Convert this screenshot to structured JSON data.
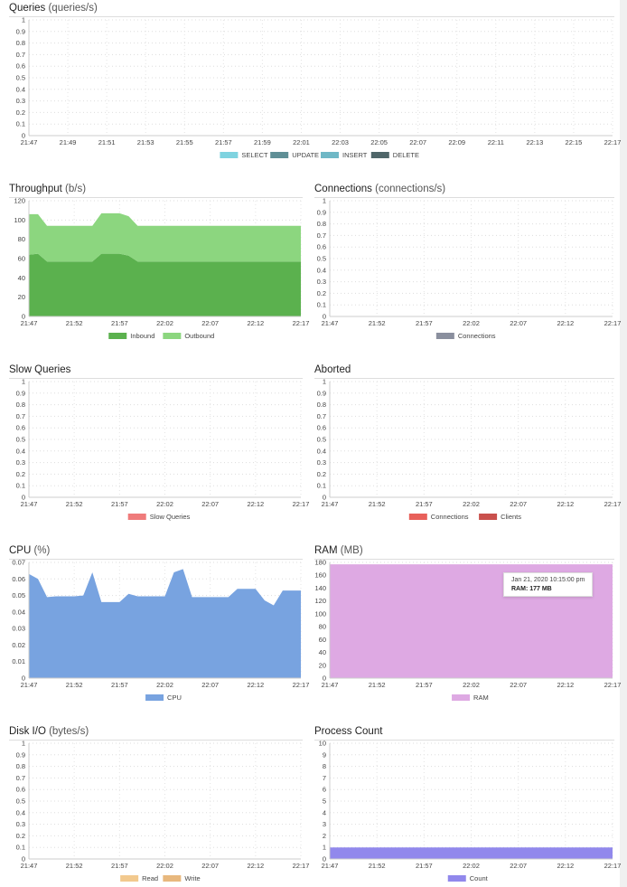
{
  "charts": [
    {
      "id": "queries",
      "title": "Queries",
      "unit": "(queries/s)",
      "ylim": [
        0,
        1
      ],
      "yticks": [
        "0",
        "0.1",
        "0.2",
        "0.3",
        "0.4",
        "0.5",
        "0.6",
        "0.7",
        "0.8",
        "0.9",
        "1"
      ],
      "xticks": [
        "21:47",
        "21:49",
        "21:51",
        "21:53",
        "21:55",
        "21:57",
        "21:59",
        "22:01",
        "22:03",
        "22:05",
        "22:07",
        "22:09",
        "22:11",
        "22:13",
        "22:15",
        "22:17"
      ],
      "series": [
        {
          "name": "SELECT",
          "color": "#7fd3e0"
        },
        {
          "name": "UPDATE",
          "color": "#5f8f96"
        },
        {
          "name": "INSERT",
          "color": "#6fb8c6"
        },
        {
          "name": "DELETE",
          "color": "#4f6669"
        }
      ]
    },
    {
      "id": "throughput",
      "title": "Throughput",
      "unit": "(b/s)",
      "ylim": [
        0,
        120
      ],
      "yticks": [
        "0",
        "20",
        "40",
        "60",
        "80",
        "100",
        "120"
      ],
      "stacked": true,
      "xticks": [
        "21:47",
        "21:52",
        "21:57",
        "22:02",
        "22:07",
        "22:12",
        "22:17"
      ],
      "series": [
        {
          "name": "Inbound",
          "color": "#5bb14e",
          "values": [
            64,
            65,
            57,
            57,
            57,
            57,
            57,
            57,
            65,
            65,
            65,
            63,
            57,
            57,
            57,
            57,
            57,
            57,
            57,
            57,
            57,
            57,
            57,
            57,
            57,
            57,
            57,
            57,
            57,
            57,
            57
          ]
        },
        {
          "name": "Outbound",
          "color": "#8cd67f",
          "values": [
            42,
            41,
            37,
            37,
            37,
            37,
            37,
            37,
            42,
            42,
            42,
            41,
            37,
            37,
            37,
            37,
            37,
            37,
            37,
            37,
            37,
            37,
            37,
            37,
            37,
            37,
            37,
            37,
            37,
            37,
            37
          ]
        }
      ]
    },
    {
      "id": "connections",
      "title": "Connections",
      "unit": "(connections/s)",
      "ylim": [
        0,
        1
      ],
      "yticks": [
        "0",
        "0.1",
        "0.2",
        "0.3",
        "0.4",
        "0.5",
        "0.6",
        "0.7",
        "0.8",
        "0.9",
        "1"
      ],
      "xticks": [
        "21:47",
        "21:52",
        "21:57",
        "22:02",
        "22:07",
        "22:12",
        "22:17"
      ],
      "series": [
        {
          "name": "Connections",
          "color": "#8a8f9e"
        }
      ]
    },
    {
      "id": "slow-queries",
      "title": "Slow Queries",
      "unit": "",
      "ylim": [
        0,
        1
      ],
      "yticks": [
        "0",
        "0.1",
        "0.2",
        "0.3",
        "0.4",
        "0.5",
        "0.6",
        "0.7",
        "0.8",
        "0.9",
        "1"
      ],
      "xticks": [
        "21:47",
        "21:52",
        "21:57",
        "22:02",
        "22:07",
        "22:12",
        "22:17"
      ],
      "series": [
        {
          "name": "Slow Queries",
          "color": "#ef7b7b"
        }
      ]
    },
    {
      "id": "aborted",
      "title": "Aborted",
      "unit": "",
      "ylim": [
        0,
        1
      ],
      "yticks": [
        "0",
        "0.1",
        "0.2",
        "0.3",
        "0.4",
        "0.5",
        "0.6",
        "0.7",
        "0.8",
        "0.9",
        "1"
      ],
      "xticks": [
        "21:47",
        "21:52",
        "21:57",
        "22:02",
        "22:07",
        "22:12",
        "22:17"
      ],
      "series": [
        {
          "name": "Connections",
          "color": "#e8605a"
        },
        {
          "name": "Clients",
          "color": "#c9504c"
        }
      ]
    },
    {
      "id": "cpu",
      "title": "CPU",
      "unit": "(%)",
      "ylim": [
        0,
        0.07
      ],
      "yticks": [
        "0",
        "0.01",
        "0.02",
        "0.03",
        "0.04",
        "0.05",
        "0.06",
        "0.07"
      ],
      "xticks": [
        "21:47",
        "21:52",
        "21:57",
        "22:02",
        "22:07",
        "22:12",
        "22:17"
      ],
      "series": [
        {
          "name": "CPU",
          "color": "#78a3e0",
          "values": [
            0.063,
            0.06,
            0.049,
            0.0495,
            0.0495,
            0.0495,
            0.05,
            0.064,
            0.046,
            0.046,
            0.046,
            0.051,
            0.0495,
            0.0495,
            0.0495,
            0.0495,
            0.064,
            0.066,
            0.049,
            0.049,
            0.049,
            0.049,
            0.049,
            0.054,
            0.054,
            0.054,
            0.047,
            0.044,
            0.053,
            0.053,
            0.053
          ]
        }
      ]
    },
    {
      "id": "ram",
      "title": "RAM",
      "unit": "(MB)",
      "ylim": [
        0,
        180
      ],
      "yticks": [
        "0",
        "20",
        "40",
        "60",
        "80",
        "100",
        "120",
        "140",
        "160",
        "180"
      ],
      "xticks": [
        "21:47",
        "21:52",
        "21:57",
        "22:02",
        "22:07",
        "22:12",
        "22:17"
      ],
      "series": [
        {
          "name": "RAM",
          "color": "#dea9e3",
          "values": [
            177,
            177,
            177,
            177,
            177,
            177,
            177,
            177,
            177,
            177,
            177,
            177,
            177,
            177,
            177,
            177,
            177,
            177,
            177,
            177,
            177,
            177,
            177,
            177,
            177,
            177,
            177,
            177,
            177,
            177,
            177
          ]
        }
      ],
      "tooltip": {
        "date": "Jan 21, 2020 10:15:00 pm",
        "label": "RAM: 177 MB"
      }
    },
    {
      "id": "disk-io",
      "title": "Disk I/O",
      "unit": "(bytes/s)",
      "ylim": [
        0,
        1
      ],
      "yticks": [
        "0",
        "0.1",
        "0.2",
        "0.3",
        "0.4",
        "0.5",
        "0.6",
        "0.7",
        "0.8",
        "0.9",
        "1"
      ],
      "xticks": [
        "21:47",
        "21:52",
        "21:57",
        "22:02",
        "22:07",
        "22:12",
        "22:17"
      ],
      "series": [
        {
          "name": "Read",
          "color": "#f2c98e"
        },
        {
          "name": "Write",
          "color": "#e8b87e"
        }
      ]
    },
    {
      "id": "process-count",
      "title": "Process Count",
      "unit": "",
      "ylim": [
        0,
        10
      ],
      "yticks": [
        "0",
        "1",
        "2",
        "3",
        "4",
        "5",
        "6",
        "7",
        "8",
        "9",
        "10"
      ],
      "xticks": [
        "21:47",
        "21:52",
        "21:57",
        "22:02",
        "22:07",
        "22:12",
        "22:17"
      ],
      "series": [
        {
          "name": "Count",
          "color": "#9188ec",
          "values": [
            1,
            1,
            1,
            1,
            1,
            1,
            1,
            1,
            1,
            1,
            1,
            1,
            1,
            1,
            1,
            1,
            1,
            1,
            1,
            1,
            1,
            1,
            1,
            1,
            1,
            1,
            1,
            1,
            1,
            1,
            1
          ]
        }
      ]
    }
  ]
}
